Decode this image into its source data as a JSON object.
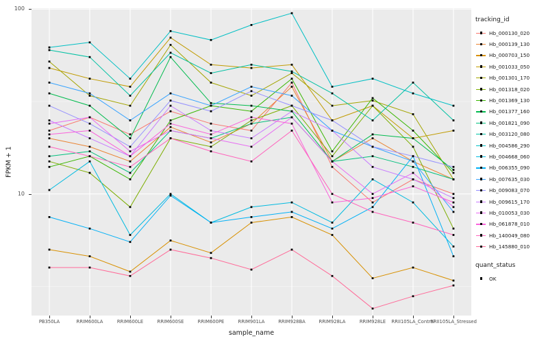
{
  "chart_data": {
    "type": "line",
    "title": "",
    "xlabel": "sample_name",
    "ylabel": "FPKM + 1",
    "y_scale": "log10",
    "ylim": [
      2.2,
      101
    ],
    "grid": {
      "major": [
        10,
        100
      ],
      "minor": [
        3.1623,
        31.623
      ]
    },
    "yticks": [
      {
        "label": "100",
        "value": 100
      },
      {
        "label": "10",
        "value": 10
      }
    ],
    "categories": [
      "PB350LA",
      "RRIM600LA",
      "RRIM600LE",
      "RRIM600SE",
      "RRIM600PE",
      "RRIM901LA",
      "RRIM928BA",
      "RRIM928LA",
      "RRIM928LE",
      "RRII105LA_Control",
      "RRII105LA_Stressed"
    ],
    "legend_title": "tracking_id",
    "legend_position": "right",
    "point_color": "#000000",
    "panel_color": "#EBEBEB",
    "series": [
      {
        "name": "Hb_000130_020",
        "color": "#F8766D",
        "values": [
          22,
          26,
          21,
          28,
          24,
          22,
          40,
          14,
          9,
          12,
          10
        ]
      },
      {
        "name": "Hb_000139_130",
        "color": "#EA8331",
        "values": [
          20,
          18,
          15,
          23,
          19,
          24,
          38,
          15,
          20,
          15,
          12
        ]
      },
      {
        "name": "Hb_000703_150",
        "color": "#D89000",
        "values": [
          5,
          4.6,
          3.8,
          5.6,
          4.8,
          7,
          7.5,
          6,
          3.5,
          4,
          3.4
        ]
      },
      {
        "name": "Hb_001033_050",
        "color": "#C09B00",
        "values": [
          48,
          42,
          38,
          70,
          50,
          48,
          50,
          25,
          30,
          20,
          22
        ]
      },
      {
        "name": "Hb_001301_170",
        "color": "#A3A500",
        "values": [
          52,
          34,
          30,
          64,
          40,
          34,
          45,
          30,
          32,
          27,
          12
        ]
      },
      {
        "name": "Hb_001318_020",
        "color": "#7CAE00",
        "values": [
          15,
          13,
          8.5,
          20,
          18,
          25,
          30,
          16,
          30,
          18,
          6.5
        ]
      },
      {
        "name": "Hb_001369_130",
        "color": "#39B600",
        "values": [
          14,
          16,
          12,
          25,
          30,
          28,
          42,
          17,
          33,
          22,
          13
        ]
      },
      {
        "name": "Hb_001377_160",
        "color": "#00BB4E",
        "values": [
          35,
          30,
          20,
          55,
          31,
          30,
          28,
          15,
          21,
          20,
          13.5
        ]
      },
      {
        "name": "Hb_001821_090",
        "color": "#00BF7D",
        "values": [
          16,
          17,
          13,
          22,
          20,
          24,
          26,
          15,
          16,
          14,
          12
        ]
      },
      {
        "name": "Hb_003120_080",
        "color": "#00C1A3",
        "values": [
          60,
          55,
          34,
          58,
          45,
          50,
          46,
          35,
          25,
          40,
          25
        ]
      },
      {
        "name": "Hb_004586_290",
        "color": "#00BFC4",
        "values": [
          62,
          66,
          42,
          76,
          68,
          82,
          95,
          38,
          42,
          35,
          30
        ]
      },
      {
        "name": "Hb_004668_060",
        "color": "#00BAE0",
        "values": [
          10.5,
          15,
          6,
          10,
          7,
          8.5,
          9,
          7,
          12,
          9,
          5.2
        ]
      },
      {
        "name": "Hb_006355_090",
        "color": "#00B0F6",
        "values": [
          7.5,
          6.5,
          5.5,
          9.8,
          7,
          7.5,
          8,
          6.5,
          8.5,
          16,
          4.6
        ]
      },
      {
        "name": "Hb_007635_030",
        "color": "#35A2FF",
        "values": [
          40,
          35,
          25,
          35,
          30,
          38,
          34,
          22,
          18,
          15,
          8
        ]
      },
      {
        "name": "Hb_009083_070",
        "color": "#9590FF",
        "values": [
          30,
          24,
          18,
          32,
          28,
          36,
          30,
          25,
          18,
          16,
          14
        ]
      },
      {
        "name": "Hb_009615_170",
        "color": "#C77CFF",
        "values": [
          25,
          20,
          16,
          30,
          22,
          20,
          28,
          22,
          14,
          12,
          9.5
        ]
      },
      {
        "name": "Hb_010053_030",
        "color": "#E76BF3",
        "values": [
          24,
          26,
          17,
          22,
          20,
          18,
          26,
          15,
          10,
          13,
          8.5
        ]
      },
      {
        "name": "Hb_061878_010",
        "color": "#FA62DB",
        "values": [
          21,
          22,
          16,
          24,
          21,
          26,
          24,
          9,
          9.5,
          11,
          9
        ]
      },
      {
        "name": "Hb_140049_080",
        "color": "#FF62BC",
        "values": [
          18,
          16,
          14,
          20,
          17,
          15,
          22,
          10,
          8,
          7,
          6
        ]
      },
      {
        "name": "Hb_145880_010",
        "color": "#FF6A98",
        "values": [
          4,
          4,
          3.6,
          5,
          4.5,
          3.9,
          5,
          3.6,
          2.4,
          2.8,
          3.2
        ]
      }
    ],
    "quant_legend": {
      "title": "quant_status",
      "items": [
        "OK"
      ]
    }
  }
}
